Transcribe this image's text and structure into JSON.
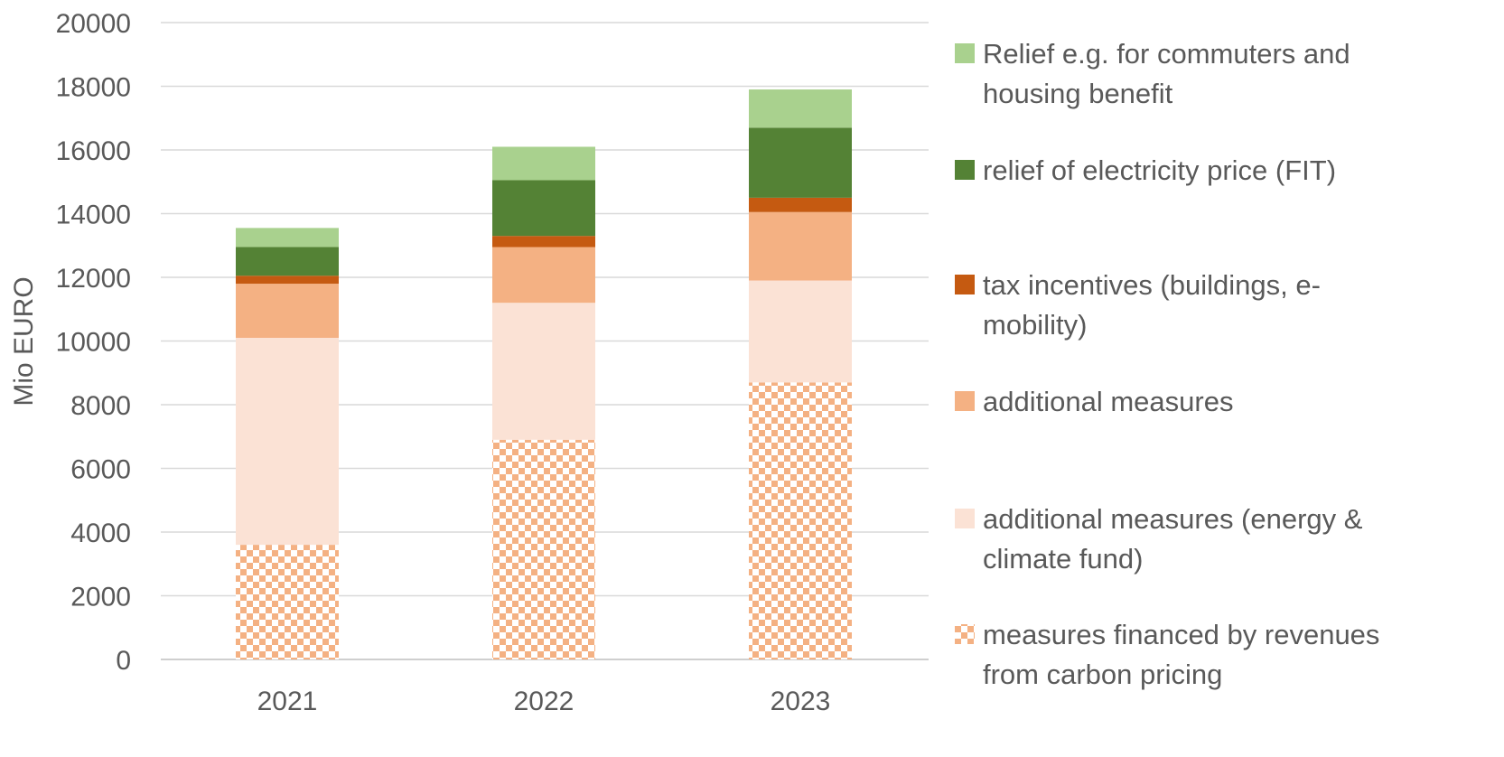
{
  "chart_data": {
    "type": "bar",
    "stacked": true,
    "title": "",
    "xlabel": "",
    "ylabel": "Mio EURO",
    "ylim": [
      0,
      20000
    ],
    "yticks": [
      0,
      2000,
      4000,
      6000,
      8000,
      10000,
      12000,
      14000,
      16000,
      18000,
      20000
    ],
    "categories": [
      "2021",
      "2022",
      "2023"
    ],
    "grid": "horizontal",
    "legend_position": "right",
    "series": [
      {
        "name": "measures financed by revenues from carbon pricing",
        "color": "#F4B183",
        "pattern": "checkerboard",
        "values": [
          3600,
          6900,
          8700
        ]
      },
      {
        "name": "additional measures (energy & climate fund)",
        "color": "#FBE2D5",
        "values": [
          6500,
          4300,
          3200
        ]
      },
      {
        "name": "additional measures",
        "color": "#F4B183",
        "values": [
          1700,
          1750,
          2150
        ]
      },
      {
        "name": "tax incentives (buildings, e-mobility)",
        "color": "#C55A11",
        "values": [
          250,
          350,
          450
        ]
      },
      {
        "name": "relief of electricity price (FIT)",
        "color": "#548235",
        "values": [
          900,
          1750,
          2200
        ]
      },
      {
        "name": "Relief e.g. for commuters and housing benefit",
        "color": "#A9D18E",
        "values": [
          600,
          1050,
          1200
        ]
      }
    ],
    "legend": [
      {
        "series": 5,
        "lines": [
          "Relief e.g. for commuters and",
          "housing benefit"
        ]
      },
      {
        "series": 4,
        "lines": [
          "relief of electricity price (FIT)"
        ]
      },
      {
        "series": 3,
        "lines": [
          "tax incentives (buildings, e-",
          "mobility)"
        ]
      },
      {
        "series": 2,
        "lines": [
          "additional measures"
        ]
      },
      {
        "series": 1,
        "lines": [
          "additional measures (energy &",
          "climate fund)"
        ]
      },
      {
        "series": 0,
        "lines": [
          "measures financed by revenues",
          "from carbon pricing"
        ]
      }
    ]
  }
}
